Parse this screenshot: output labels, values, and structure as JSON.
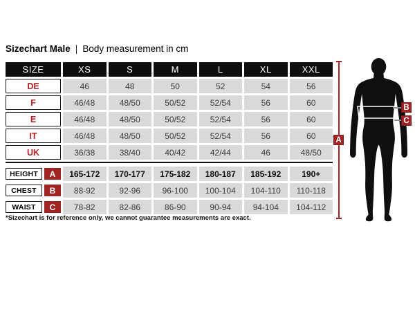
{
  "title": {
    "main": "Sizechart Male",
    "separator": "|",
    "subtitle": "Body measurement in cm"
  },
  "table": {
    "header": {
      "size_label": "SIZE",
      "columns": [
        "XS",
        "S",
        "M",
        "L",
        "XL",
        "XXL"
      ]
    },
    "size_rows": [
      {
        "label": "DE",
        "values": [
          "46",
          "48",
          "50",
          "52",
          "54",
          "56"
        ]
      },
      {
        "label": "F",
        "values": [
          "46/48",
          "48/50",
          "50/52",
          "52/54",
          "56",
          "60"
        ]
      },
      {
        "label": "E",
        "values": [
          "46/48",
          "48/50",
          "50/52",
          "52/54",
          "56",
          "60"
        ]
      },
      {
        "label": "IT",
        "values": [
          "46/48",
          "48/50",
          "50/52",
          "52/54",
          "56",
          "60"
        ]
      },
      {
        "label": "UK",
        "values": [
          "36/38",
          "38/40",
          "40/42",
          "42/44",
          "46",
          "48/50"
        ]
      }
    ],
    "measure_rows": [
      {
        "label": "HEIGHT",
        "marker": "A",
        "bold": true,
        "values": [
          "165-172",
          "170-177",
          "175-182",
          "180-187",
          "185-192",
          "190+"
        ]
      },
      {
        "label": "CHEST",
        "marker": "B",
        "bold": false,
        "values": [
          "88-92",
          "92-96",
          "96-100",
          "100-104",
          "104-110",
          "110-118"
        ]
      },
      {
        "label": "WAIST",
        "marker": "C",
        "bold": false,
        "values": [
          "78-82",
          "82-86",
          "86-90",
          "90-94",
          "94-104",
          "104-112"
        ]
      }
    ]
  },
  "figure": {
    "markers": [
      "A",
      "B",
      "C"
    ]
  },
  "footnote": "*Sizechart is for reference only, we cannot guarantee measurements are exact.",
  "colors": {
    "accent_red": "#a02423",
    "label_red": "#b42025",
    "header_bg": "#0e0e0e",
    "cell_bg": "#d9d9d9"
  },
  "chart_data": {
    "type": "table",
    "title": "Sizechart Male | Body measurement in cm",
    "units": "cm",
    "columns": [
      "SIZE",
      "XS",
      "S",
      "M",
      "L",
      "XL",
      "XXL"
    ],
    "rows": [
      [
        "DE",
        "46",
        "48",
        "50",
        "52",
        "54",
        "56"
      ],
      [
        "F",
        "46/48",
        "48/50",
        "50/52",
        "52/54",
        "56",
        "60"
      ],
      [
        "E",
        "46/48",
        "48/50",
        "50/52",
        "52/54",
        "56",
        "60"
      ],
      [
        "IT",
        "46/48",
        "48/50",
        "50/52",
        "52/54",
        "56",
        "60"
      ],
      [
        "UK",
        "36/38",
        "38/40",
        "40/42",
        "42/44",
        "46",
        "48/50"
      ],
      [
        "HEIGHT (A)",
        "165-172",
        "170-177",
        "175-182",
        "180-187",
        "185-192",
        "190+"
      ],
      [
        "CHEST (B)",
        "88-92",
        "92-96",
        "96-100",
        "100-104",
        "104-110",
        "110-118"
      ],
      [
        "WAIST (C)",
        "78-82",
        "82-86",
        "86-90",
        "90-94",
        "94-104",
        "104-112"
      ]
    ],
    "footnote": "*Sizechart is for reference only, we cannot guarantee measurements are exact."
  }
}
